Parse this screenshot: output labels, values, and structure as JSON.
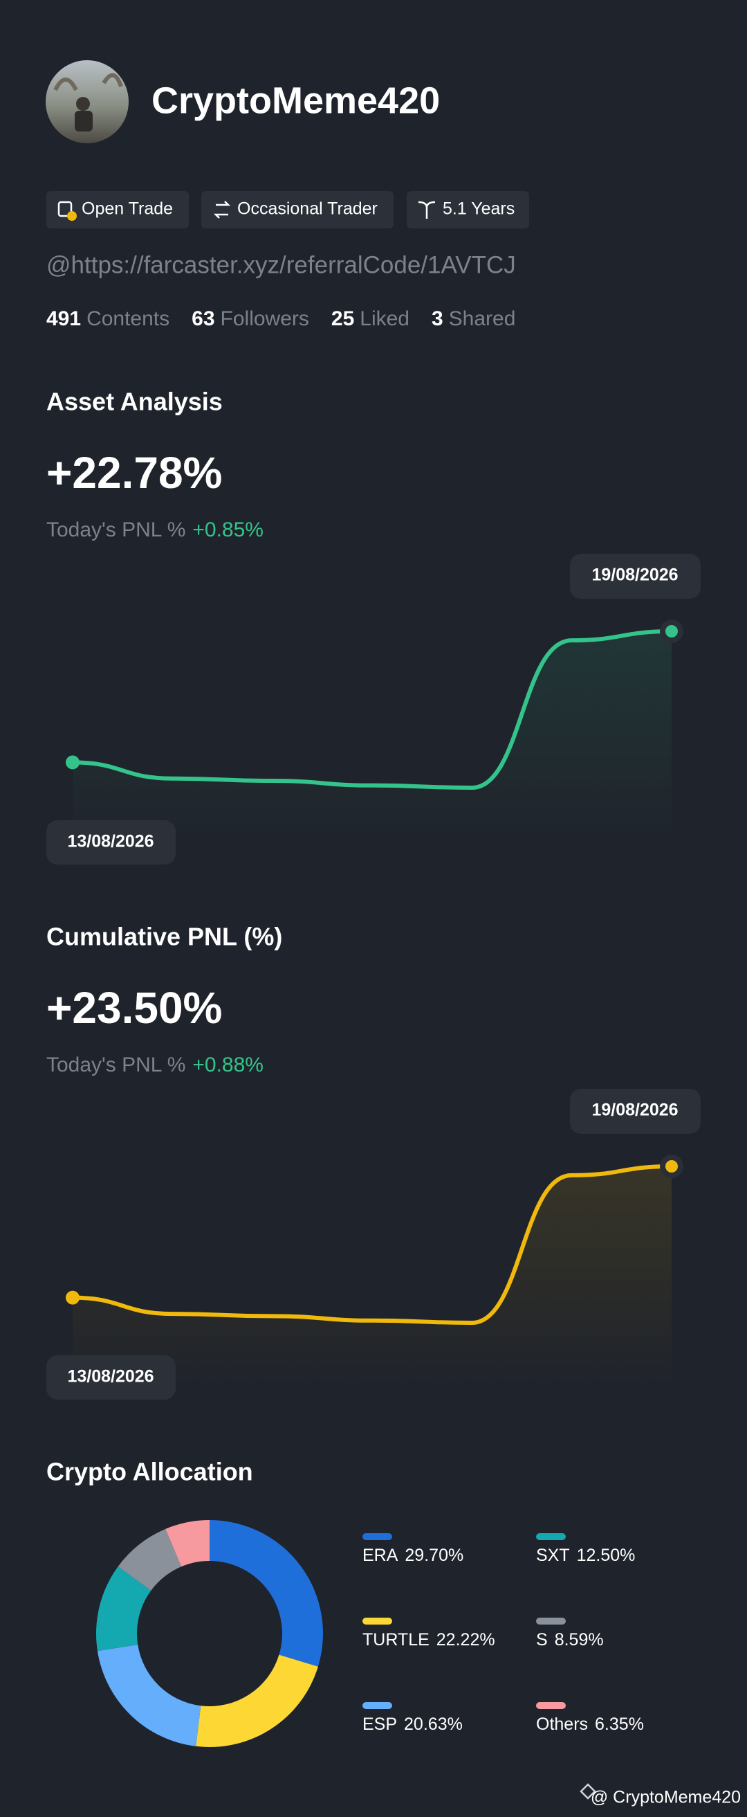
{
  "profile": {
    "name": "CryptoMeme420",
    "tags": [
      "Open Trade",
      "Occasional Trader",
      "5.1 Years"
    ],
    "handle": "@https://farcaster.xyz/referralCode/1AVTCJ",
    "stats": [
      {
        "count": 491,
        "label": "Contents"
      },
      {
        "count": 63,
        "label": "Followers"
      },
      {
        "count": 25,
        "label": "Liked"
      },
      {
        "count": 3,
        "label": "Shared"
      }
    ]
  },
  "chart_data": [
    {
      "type": "line",
      "title": "Asset Analysis",
      "headline": "+22.78%",
      "pnl_label": "Today's PNL %",
      "pnl_value": "+0.85%",
      "categories": [
        "13/08/2026",
        null,
        null,
        null,
        null,
        null,
        "19/08/2026"
      ],
      "series": [
        {
          "color": "#34c48b",
          "values": [
            0,
            -2.8,
            -3.2,
            -4.0,
            -4.4,
            21.2,
            22.78
          ]
        }
      ]
    },
    {
      "type": "line",
      "title": "Cumulative PNL (%)",
      "headline": "+23.50%",
      "pnl_label": "Today's PNL %",
      "pnl_value": "+0.88%",
      "categories": [
        "13/08/2026",
        null,
        null,
        null,
        null,
        null,
        "19/08/2026"
      ],
      "series": [
        {
          "color": "#f0b90b",
          "values": [
            0,
            -2.9,
            -3.3,
            -4.1,
            -4.5,
            21.9,
            23.5
          ]
        }
      ]
    },
    {
      "type": "pie",
      "title": "Crypto Allocation",
      "categories": [
        "ERA",
        "TURTLE",
        "ESP",
        "SXT",
        "S",
        "Others"
      ],
      "values": [
        29.7,
        22.22,
        20.63,
        12.5,
        8.59,
        6.35
      ],
      "value_labels": [
        "29.70%",
        "22.22%",
        "20.63%",
        "12.50%",
        "8.59%",
        "6.35%"
      ],
      "colors": [
        "#1f6fdb",
        "#fdd835",
        "#64aefc",
        "#14a8b0",
        "#8a919b",
        "#f79aa0"
      ]
    }
  ],
  "footer": "@ CryptoMeme420"
}
